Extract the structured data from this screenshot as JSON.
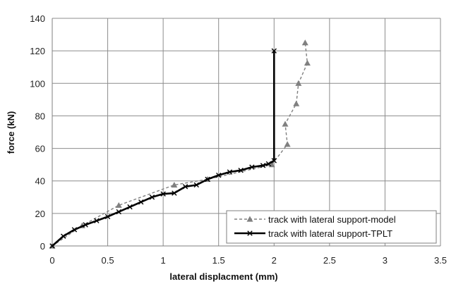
{
  "chart_data": {
    "type": "line",
    "title": "",
    "xlabel": "lateral displacment (mm)",
    "ylabel": "force (kN)",
    "xlim": [
      0,
      3.5
    ],
    "ylim": [
      0,
      140
    ],
    "xticks": [
      "0",
      "0.5",
      "1",
      "1.5",
      "2",
      "2.5",
      "3",
      "3.5"
    ],
    "yticks": [
      "0",
      "20",
      "40",
      "60",
      "80",
      "100",
      "120",
      "140"
    ],
    "grid": true,
    "legend_position": "bottom-right",
    "series": [
      {
        "name": "track with lateral support-model",
        "style": "dashed",
        "marker": "triangle",
        "color": "#808080",
        "x": [
          0,
          0.27,
          0.6,
          1.1,
          1.4,
          1.98,
          2.12,
          2.1,
          2.2,
          2.22,
          2.3,
          2.28
        ],
        "y": [
          0,
          12.5,
          25,
          37.5,
          41,
          50,
          62.5,
          75,
          87.5,
          100,
          112.5,
          125
        ]
      },
      {
        "name": "track with lateral support-TPLT",
        "style": "solid",
        "marker": "x",
        "color": "#000000",
        "x": [
          0,
          0.1,
          0.2,
          0.3,
          0.4,
          0.5,
          0.6,
          0.7,
          0.8,
          0.9,
          1.0,
          1.1,
          1.2,
          1.3,
          1.4,
          1.5,
          1.6,
          1.7,
          1.8,
          1.9,
          1.95,
          2.0,
          2.0
        ],
        "y": [
          0,
          6,
          10,
          13,
          15.5,
          18,
          21,
          24,
          27,
          30,
          32,
          32.5,
          36.5,
          37.5,
          41,
          43.5,
          45.5,
          46.5,
          48.5,
          49.5,
          50.5,
          52.5,
          120
        ]
      }
    ]
  }
}
